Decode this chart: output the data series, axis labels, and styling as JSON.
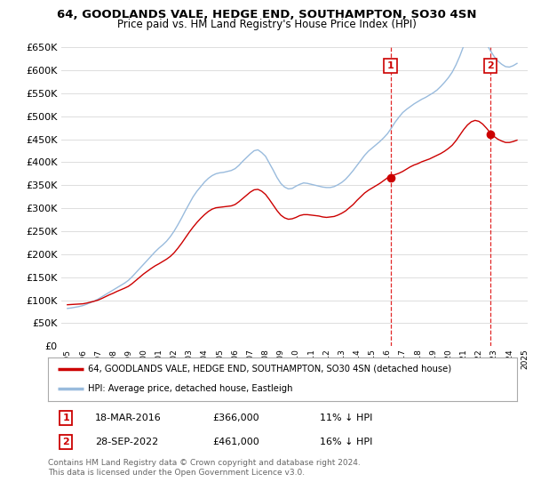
{
  "title": "64, GOODLANDS VALE, HEDGE END, SOUTHAMPTON, SO30 4SN",
  "subtitle": "Price paid vs. HM Land Registry's House Price Index (HPI)",
  "red_label": "64, GOODLANDS VALE, HEDGE END, SOUTHAMPTON, SO30 4SN (detached house)",
  "blue_label": "HPI: Average price, detached house, Eastleigh",
  "annotation1_date": "18-MAR-2016",
  "annotation1_price": "£366,000",
  "annotation1_pct": "11% ↓ HPI",
  "annotation2_date": "28-SEP-2022",
  "annotation2_price": "£461,000",
  "annotation2_pct": "16% ↓ HPI",
  "footer": "Contains HM Land Registry data © Crown copyright and database right 2024.\nThis data is licensed under the Open Government Licence v3.0.",
  "vline1_x": 2016.2,
  "vline2_x": 2022.75,
  "ylim": [
    0,
    650000
  ],
  "xlim_start": 1994.6,
  "xlim_end": 2025.2,
  "red_color": "#cc0000",
  "blue_color": "#99bbdd",
  "background_color": "#ffffff",
  "grid_color": "#dddddd",
  "hpi_x": [
    1995.0,
    1995.25,
    1995.5,
    1995.75,
    1996.0,
    1996.25,
    1996.5,
    1996.75,
    1997.0,
    1997.25,
    1997.5,
    1997.75,
    1998.0,
    1998.25,
    1998.5,
    1998.75,
    1999.0,
    1999.25,
    1999.5,
    1999.75,
    2000.0,
    2000.25,
    2000.5,
    2000.75,
    2001.0,
    2001.25,
    2001.5,
    2001.75,
    2002.0,
    2002.25,
    2002.5,
    2002.75,
    2003.0,
    2003.25,
    2003.5,
    2003.75,
    2004.0,
    2004.25,
    2004.5,
    2004.75,
    2005.0,
    2005.25,
    2005.5,
    2005.75,
    2006.0,
    2006.25,
    2006.5,
    2006.75,
    2007.0,
    2007.25,
    2007.5,
    2007.75,
    2008.0,
    2008.25,
    2008.5,
    2008.75,
    2009.0,
    2009.25,
    2009.5,
    2009.75,
    2010.0,
    2010.25,
    2010.5,
    2010.75,
    2011.0,
    2011.25,
    2011.5,
    2011.75,
    2012.0,
    2012.25,
    2012.5,
    2012.75,
    2013.0,
    2013.25,
    2013.5,
    2013.75,
    2014.0,
    2014.25,
    2014.5,
    2014.75,
    2015.0,
    2015.25,
    2015.5,
    2015.75,
    2016.0,
    2016.25,
    2016.5,
    2016.75,
    2017.0,
    2017.25,
    2017.5,
    2017.75,
    2018.0,
    2018.25,
    2018.5,
    2018.75,
    2019.0,
    2019.25,
    2019.5,
    2019.75,
    2020.0,
    2020.25,
    2020.5,
    2020.75,
    2021.0,
    2021.25,
    2021.5,
    2021.75,
    2022.0,
    2022.25,
    2022.5,
    2022.75,
    2023.0,
    2023.25,
    2023.5,
    2023.75,
    2024.0,
    2024.25,
    2024.5
  ],
  "hpi_y": [
    82000,
    83000,
    84500,
    86000,
    88000,
    91000,
    94500,
    98000,
    102000,
    107000,
    112000,
    117000,
    122000,
    127000,
    132000,
    137000,
    143000,
    151000,
    160000,
    169000,
    178000,
    187000,
    196000,
    205000,
    213000,
    220000,
    228000,
    238000,
    250000,
    264000,
    279000,
    295000,
    310000,
    325000,
    337000,
    347000,
    357000,
    365000,
    371000,
    375000,
    377000,
    378000,
    380000,
    382000,
    386000,
    393000,
    402000,
    410000,
    418000,
    425000,
    427000,
    421000,
    413000,
    398000,
    383000,
    367000,
    354000,
    346000,
    342000,
    343000,
    348000,
    352000,
    355000,
    354000,
    352000,
    350000,
    348000,
    346000,
    345000,
    345000,
    347000,
    351000,
    356000,
    363000,
    372000,
    382000,
    393000,
    404000,
    415000,
    424000,
    431000,
    438000,
    445000,
    453000,
    462000,
    474000,
    487000,
    498000,
    508000,
    515000,
    521000,
    527000,
    532000,
    537000,
    541000,
    546000,
    551000,
    557000,
    565000,
    574000,
    584000,
    596000,
    612000,
    631000,
    653000,
    672000,
    683000,
    687000,
    683000,
    672000,
    657000,
    643000,
    630000,
    620000,
    613000,
    608000,
    607000,
    610000,
    615000
  ],
  "red_x": [
    1995.0,
    1995.25,
    1995.5,
    1995.75,
    1996.0,
    1996.25,
    1996.5,
    1996.75,
    1997.0,
    1997.25,
    1997.5,
    1997.75,
    1998.0,
    1998.25,
    1998.5,
    1998.75,
    1999.0,
    1999.25,
    1999.5,
    1999.75,
    2000.0,
    2000.25,
    2000.5,
    2000.75,
    2001.0,
    2001.25,
    2001.5,
    2001.75,
    2002.0,
    2002.25,
    2002.5,
    2002.75,
    2003.0,
    2003.25,
    2003.5,
    2003.75,
    2004.0,
    2004.25,
    2004.5,
    2004.75,
    2005.0,
    2005.25,
    2005.5,
    2005.75,
    2006.0,
    2006.25,
    2006.5,
    2006.75,
    2007.0,
    2007.25,
    2007.5,
    2007.75,
    2008.0,
    2008.25,
    2008.5,
    2008.75,
    2009.0,
    2009.25,
    2009.5,
    2009.75,
    2010.0,
    2010.25,
    2010.5,
    2010.75,
    2011.0,
    2011.25,
    2011.5,
    2011.75,
    2012.0,
    2012.25,
    2012.5,
    2012.75,
    2013.0,
    2013.25,
    2013.5,
    2013.75,
    2014.0,
    2014.25,
    2014.5,
    2014.75,
    2015.0,
    2015.25,
    2015.5,
    2015.75,
    2016.0,
    2016.25,
    2016.5,
    2016.75,
    2017.0,
    2017.25,
    2017.5,
    2017.75,
    2018.0,
    2018.25,
    2018.5,
    2018.75,
    2019.0,
    2019.25,
    2019.5,
    2019.75,
    2020.0,
    2020.25,
    2020.5,
    2020.75,
    2021.0,
    2021.25,
    2021.5,
    2021.75,
    2022.0,
    2022.25,
    2022.5,
    2022.75,
    2023.0,
    2023.25,
    2023.5,
    2023.75,
    2024.0,
    2024.25,
    2024.5
  ],
  "red_y": [
    90000,
    90500,
    91000,
    91500,
    92000,
    93500,
    95500,
    97500,
    100000,
    103500,
    107500,
    111500,
    115000,
    119000,
    122500,
    126000,
    130000,
    136000,
    143000,
    150000,
    157000,
    163000,
    169000,
    174500,
    179000,
    184000,
    189000,
    195000,
    203000,
    213000,
    224000,
    236000,
    248000,
    259000,
    269000,
    278000,
    286000,
    293000,
    298000,
    301000,
    302000,
    303000,
    304000,
    305000,
    308000,
    314000,
    321000,
    328000,
    335000,
    340000,
    341000,
    337000,
    330000,
    319000,
    307000,
    295000,
    285000,
    279000,
    276000,
    277000,
    280000,
    284000,
    286000,
    286000,
    285000,
    284000,
    283000,
    281000,
    280000,
    281000,
    282000,
    285000,
    289000,
    294000,
    301000,
    308000,
    317000,
    325000,
    333000,
    339000,
    344000,
    349000,
    354000,
    360000,
    366000,
    370000,
    373000,
    376000,
    380000,
    385000,
    390000,
    394000,
    397000,
    401000,
    404000,
    407000,
    411000,
    415000,
    419000,
    424000,
    430000,
    437000,
    447000,
    459000,
    471000,
    481000,
    488000,
    491000,
    489000,
    483000,
    474000,
    464000,
    456000,
    450000,
    446000,
    443000,
    443000,
    445000,
    448000
  ],
  "sale1_x": 2016.2,
  "sale1_y": 366000,
  "sale2_x": 2022.75,
  "sale2_y": 461000
}
